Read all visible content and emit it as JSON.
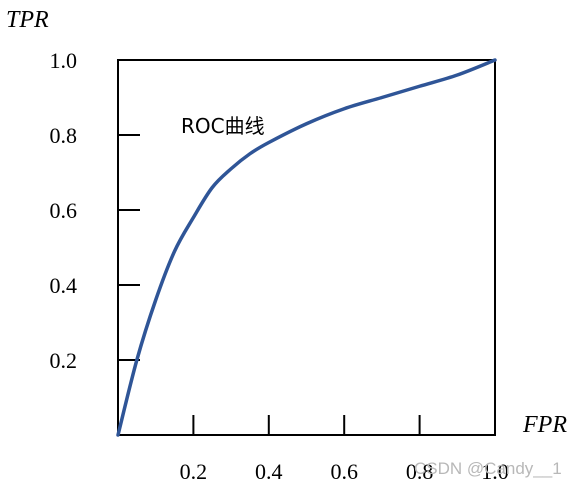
{
  "chart_data": {
    "type": "line",
    "xlabel": "FPR",
    "ylabel": "TPR",
    "xlim": [
      0,
      1
    ],
    "ylim": [
      0,
      1
    ],
    "x_ticks": [
      0.2,
      0.4,
      0.6,
      0.8,
      1.0
    ],
    "x_tick_labels": [
      "0.2",
      "0.4",
      "0.6",
      "0.8",
      "1.0"
    ],
    "y_ticks": [
      0.2,
      0.4,
      0.6,
      0.8,
      1.0
    ],
    "y_tick_labels": [
      "0.2",
      "0.4",
      "0.6",
      "0.8",
      "1.0"
    ],
    "grid": false,
    "series": [
      {
        "name": "ROC曲线",
        "color": "#2f5597",
        "x": [
          0,
          0.05,
          0.1,
          0.15,
          0.2,
          0.25,
          0.3,
          0.35,
          0.4,
          0.5,
          0.6,
          0.7,
          0.8,
          0.9,
          1.0
        ],
        "y": [
          0,
          0.2,
          0.36,
          0.49,
          0.58,
          0.66,
          0.71,
          0.75,
          0.78,
          0.83,
          0.87,
          0.9,
          0.93,
          0.96,
          1.0
        ]
      }
    ],
    "annotations": [
      {
        "text": "ROC曲线"
      }
    ]
  },
  "watermark": "CSDN @Candy__1"
}
